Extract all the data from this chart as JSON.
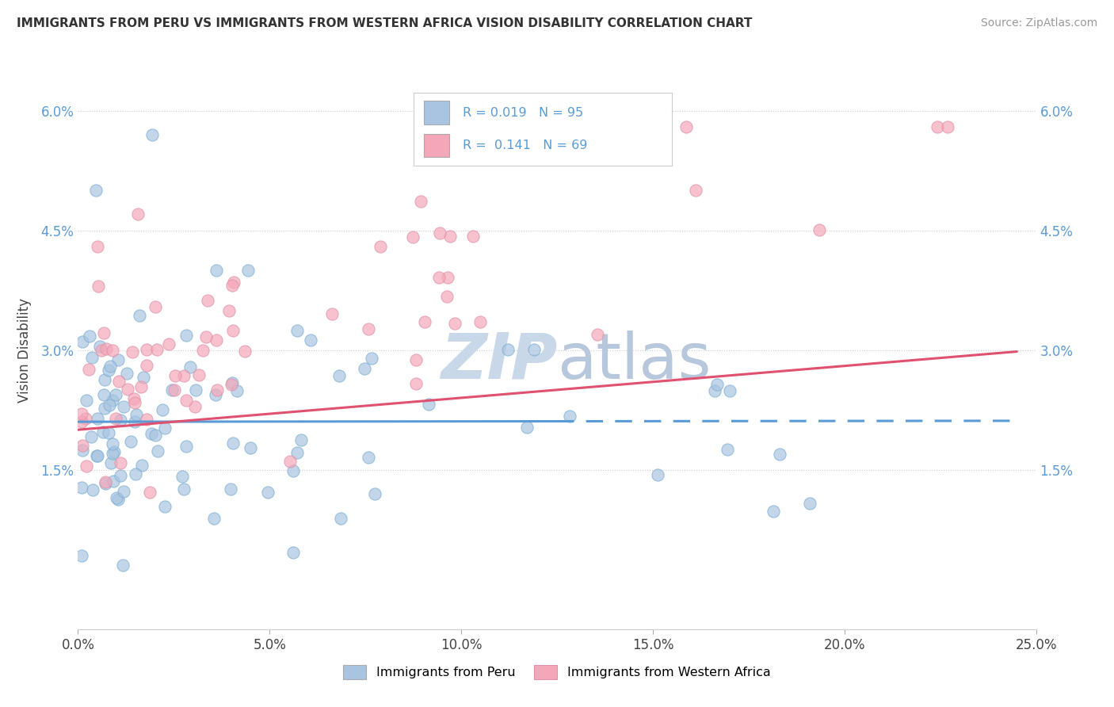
{
  "title": "IMMIGRANTS FROM PERU VS IMMIGRANTS FROM WESTERN AFRICA VISION DISABILITY CORRELATION CHART",
  "source": "Source: ZipAtlas.com",
  "ylabel": "Vision Disability",
  "xmin": 0.0,
  "xmax": 0.25,
  "ymin": -0.005,
  "ymax": 0.065,
  "xticks": [
    0.0,
    0.05,
    0.1,
    0.15,
    0.2,
    0.25
  ],
  "xticklabels": [
    "0.0%",
    "5.0%",
    "10.0%",
    "15.0%",
    "20.0%",
    "25.0%"
  ],
  "yticks": [
    0.0,
    0.015,
    0.03,
    0.045,
    0.06
  ],
  "yticklabels": [
    "",
    "1.5%",
    "3.0%",
    "4.5%",
    "6.0%"
  ],
  "legend1_label": "Immigrants from Peru",
  "legend2_label": "Immigrants from Western Africa",
  "r1": 0.019,
  "n1": 95,
  "r2": 0.141,
  "n2": 69,
  "color_peru": "#a8c4e0",
  "color_wa": "#f4a7b9",
  "trend_color_peru": "#5b9bd5",
  "trend_color_wa": "#e05070",
  "watermark_color": "#c8d8e8",
  "bg_color": "#ffffff",
  "grid_color": "#dddddd"
}
